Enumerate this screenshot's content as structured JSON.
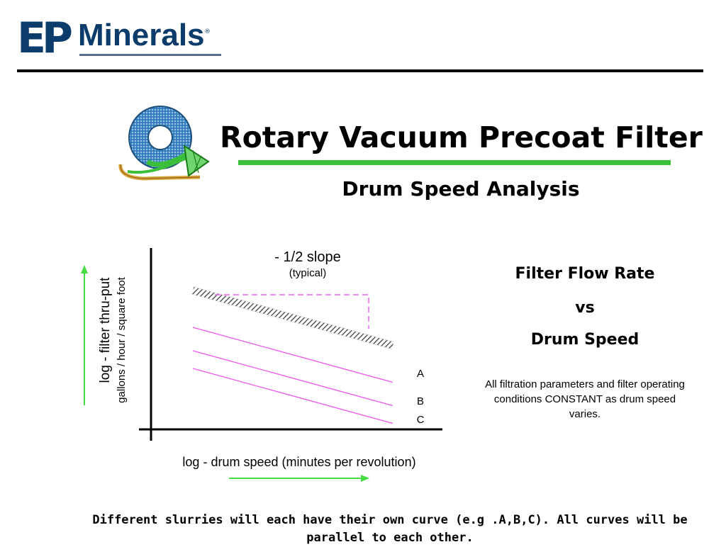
{
  "logo": {
    "mark": "EP",
    "word": "Minerals",
    "reg": "®"
  },
  "slide": {
    "title": "Rotary Vacuum Precoat Filter",
    "subtitle": "Drum Speed Analysis"
  },
  "colors": {
    "accent_green": "#37c23a",
    "curve_pink": "#ee55ee",
    "logo_blue": "#0c3c6b",
    "emblem_blue": "#3f88c5"
  },
  "icons": {
    "emblem": "rotary-filter-emblem-icon",
    "axis_arrows": "green-arrow-icon"
  },
  "chart_data": {
    "type": "line",
    "title": "",
    "xlabel": "log - drum speed  (minutes per revolution)",
    "ylabel": "log - filter thru-put",
    "ylabel_units": "gallons / hour / square foot",
    "slope_annotation": "- 1/2 slope",
    "slope_note": "(typical)",
    "x_scale": "log",
    "y_scale": "log",
    "grid": false,
    "series": [
      {
        "name": "",
        "style": "hatched-band",
        "slope": -0.5
      },
      {
        "name": "A",
        "style": "thin",
        "slope": -0.5
      },
      {
        "name": "B",
        "style": "thin",
        "slope": -0.5
      },
      {
        "name": "C",
        "style": "thin",
        "slope": -0.5
      }
    ]
  },
  "side_panel": {
    "line1": "Filter Flow Rate",
    "line2": "vs",
    "line3": "Drum Speed",
    "note": "All filtration parameters and filter operating conditions CONSTANT as drum speed varies."
  },
  "footer": {
    "text": "Different slurries will each have their own curve (e.g .A,B,C).  All curves will be parallel to each other."
  }
}
